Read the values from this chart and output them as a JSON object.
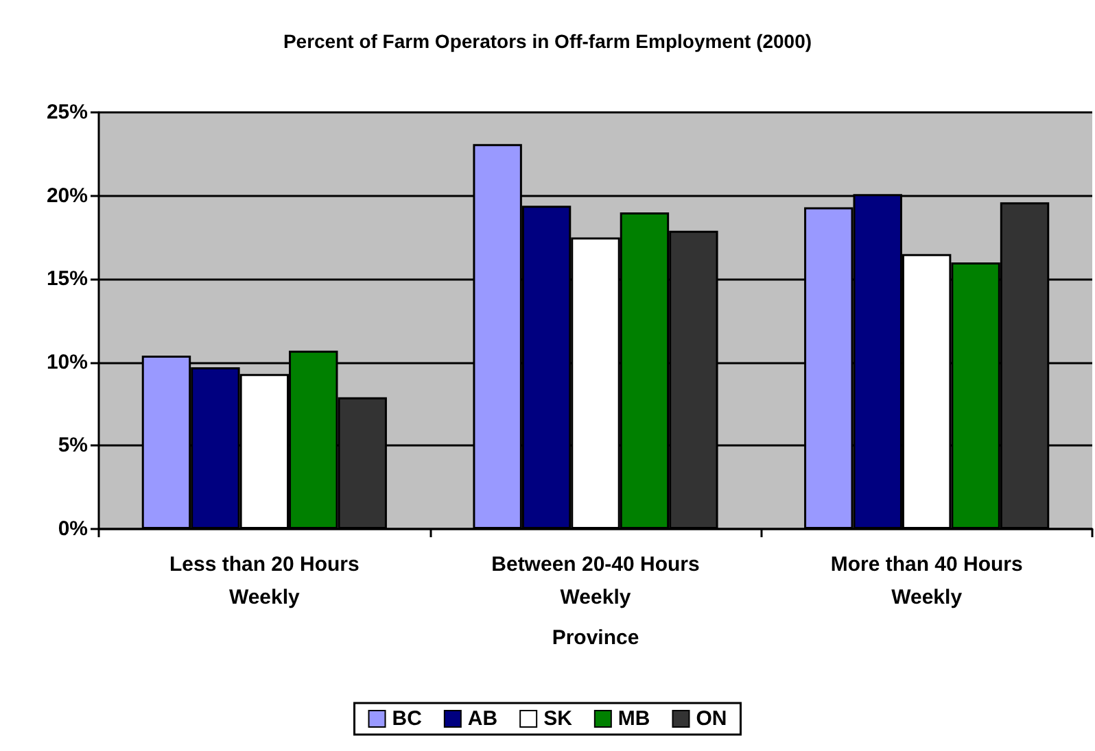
{
  "chart_data": {
    "type": "bar",
    "title": "Percent of Farm Operators in Off-farm Employment (2000)",
    "xlabel": "Province",
    "categories": [
      "Less than 20 Hours\nWeekly",
      "Between 20-40 Hours\nWeekly",
      "More than 40 Hours\nWeekly"
    ],
    "series": [
      {
        "name": "BC",
        "color": "#9999ff",
        "values": [
          10.4,
          23.1,
          19.3
        ]
      },
      {
        "name": "AB",
        "color": "#000080",
        "values": [
          9.7,
          19.4,
          20.1
        ]
      },
      {
        "name": "SK",
        "color": "#ffffff",
        "values": [
          9.3,
          17.5,
          16.5
        ]
      },
      {
        "name": "MB",
        "color": "#008000",
        "values": [
          10.7,
          19.0,
          16.0
        ]
      },
      {
        "name": "ON",
        "color": "#333333",
        "values": [
          7.9,
          17.9,
          19.6
        ]
      }
    ],
    "ylim": [
      0,
      25
    ],
    "yticks": [
      {
        "value": 0,
        "label": "0%"
      },
      {
        "value": 5,
        "label": "5%"
      },
      {
        "value": 10,
        "label": "10%"
      },
      {
        "value": 15,
        "label": "15%"
      },
      {
        "value": 20,
        "label": "20%"
      },
      {
        "value": 25,
        "label": "25%"
      }
    ],
    "grid": "y",
    "legend": "bottom"
  }
}
